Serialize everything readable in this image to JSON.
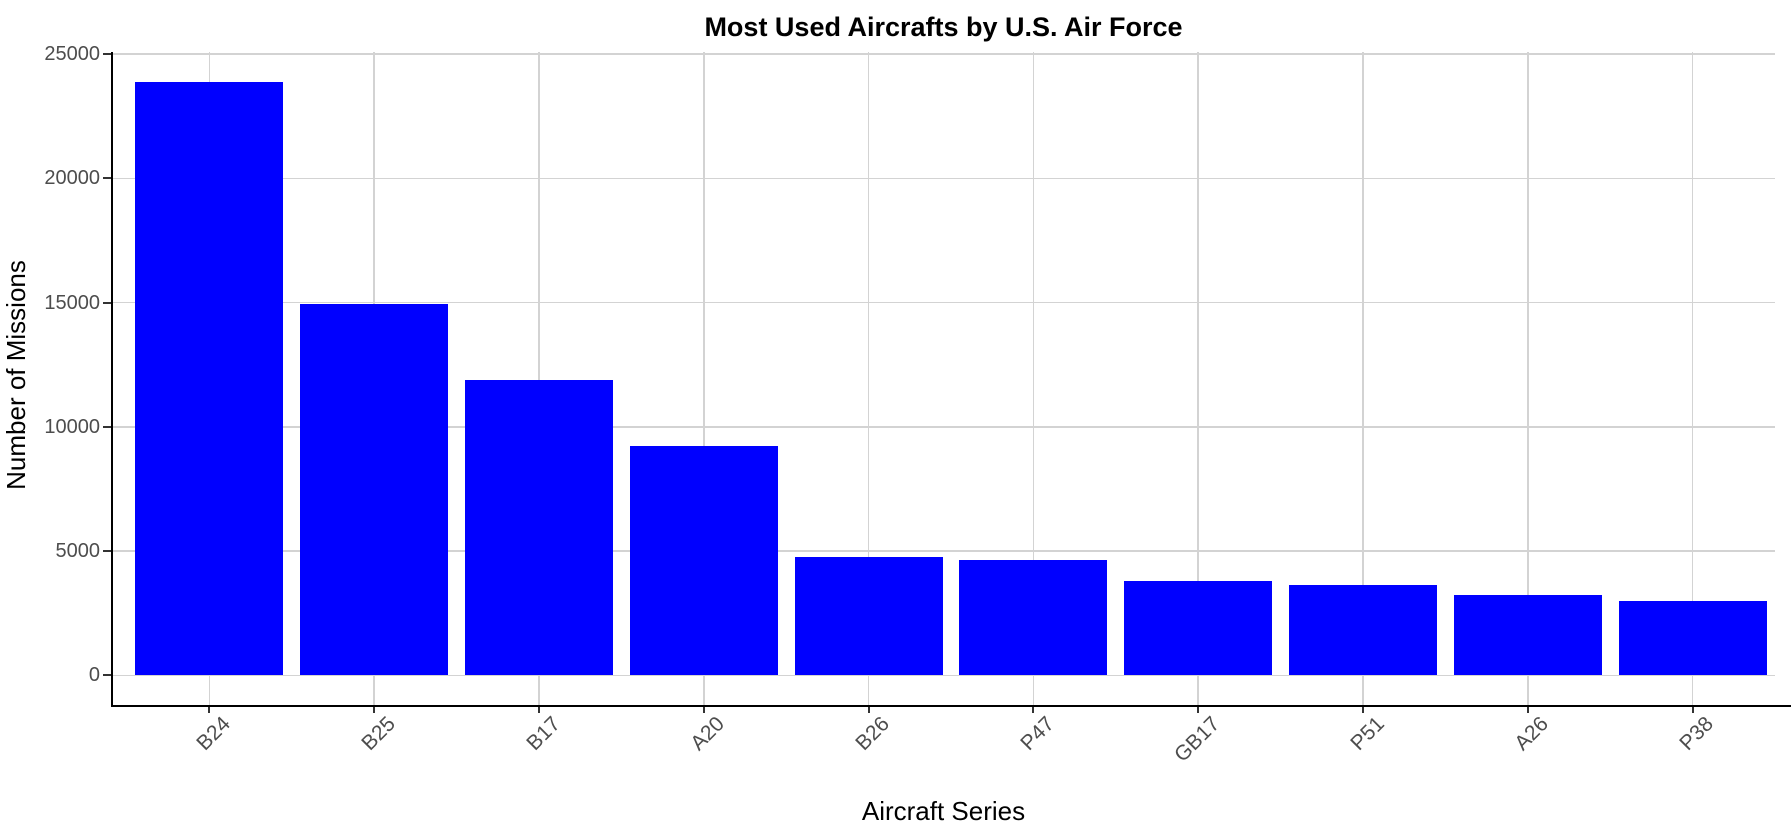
{
  "header": {
    "title": "Most Used Aircrafts by U.S. Air Force"
  },
  "axes": {
    "y_title": "Number of Missions",
    "x_title": "Aircraft Series",
    "y_tick_labels": [
      "0",
      "5000",
      "10000",
      "15000",
      "20000",
      "25000"
    ]
  },
  "colors": {
    "bar": "#0000FF",
    "gridline": "#D3D3D3",
    "axis_line": "#000000",
    "tick_mark": "#333333",
    "tick_text": "#4D4D4D",
    "title_text": "#000000"
  },
  "chart_data": {
    "type": "bar",
    "title": "Most Used Aircrafts by U.S. Air Force",
    "xlabel": "Aircraft Series",
    "ylabel": "Number of Missions",
    "categories": [
      "B24",
      "B25",
      "B17",
      "A20",
      "B26",
      "P47",
      "GB17",
      "P51",
      "A26",
      "P38"
    ],
    "values": [
      23890,
      14950,
      11890,
      9240,
      4770,
      4640,
      3780,
      3650,
      3240,
      2990
    ],
    "ylim": [
      0,
      25000
    ],
    "ytick_step": 5000,
    "grid": "major-only",
    "legend": "none",
    "bar_color": "#0000FF",
    "x_tick_rotation_deg": 45
  }
}
